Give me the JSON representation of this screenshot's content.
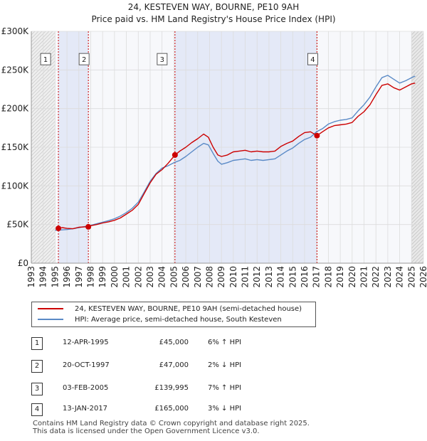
{
  "chart_data": {
    "type": "line",
    "title": "24, KESTEVEN WAY, BOURNE, PE10 9AH",
    "subtitle": "Price paid vs. HM Land Registry's House Price Index (HPI)",
    "xlabel": "",
    "ylabel": "",
    "xlim": [
      1993,
      2026
    ],
    "ylim": [
      0,
      300000
    ],
    "grid": true,
    "x_ticks": [
      "1993",
      "1994",
      "1995",
      "1996",
      "1997",
      "1998",
      "1999",
      "2000",
      "2001",
      "2002",
      "2003",
      "2004",
      "2005",
      "2006",
      "2007",
      "2008",
      "2009",
      "2010",
      "2011",
      "2012",
      "2013",
      "2014",
      "2015",
      "2016",
      "2017",
      "2018",
      "2019",
      "2020",
      "2021",
      "2022",
      "2023",
      "2024",
      "2025",
      "2026"
    ],
    "y_ticks": [
      {
        "value": 0,
        "label": "£0"
      },
      {
        "value": 50000,
        "label": "£50K"
      },
      {
        "value": 100000,
        "label": "£100K"
      },
      {
        "value": 150000,
        "label": "£150K"
      },
      {
        "value": 200000,
        "label": "£200K"
      },
      {
        "value": 250000,
        "label": "£250K"
      },
      {
        "value": 300000,
        "label": "£300K"
      }
    ],
    "series": [
      {
        "name": "24, KESTEVEN WAY, BOURNE, PE10 9AH (semi-detached house)",
        "color": "#cc0000",
        "x": [
          1995.28,
          1995.6,
          1996,
          1996.5,
          1997,
          1997.5,
          1997.8,
          1998,
          1998.5,
          1999,
          1999.5,
          2000,
          2000.5,
          2001,
          2001.5,
          2002,
          2002.5,
          2003,
          2003.5,
          2004,
          2004.5,
          2005.09,
          2005.5,
          2006,
          2006.5,
          2007,
          2007.5,
          2007.9,
          2008.3,
          2008.7,
          2009,
          2009.5,
          2010,
          2010.5,
          2011,
          2011.5,
          2012,
          2012.5,
          2013,
          2013.5,
          2014,
          2014.5,
          2015,
          2015.5,
          2016,
          2016.5,
          2017.04,
          2017.5,
          2018,
          2018.5,
          2019,
          2019.5,
          2020,
          2020.5,
          2021,
          2021.5,
          2022,
          2022.5,
          2023,
          2023.5,
          2024,
          2024.5,
          2025,
          2025.3
        ],
        "values": [
          45000,
          46000,
          45000,
          44500,
          46500,
          47000,
          47000,
          48500,
          50000,
          52000,
          53500,
          55500,
          58500,
          63500,
          68500,
          76000,
          90000,
          104000,
          115000,
          121000,
          129000,
          139995,
          145000,
          150000,
          156000,
          161000,
          167000,
          163000,
          150000,
          140000,
          138000,
          140000,
          144000,
          145000,
          146000,
          144000,
          145000,
          144000,
          144000,
          145000,
          151000,
          155000,
          158000,
          164000,
          169000,
          170000,
          165000,
          170000,
          175000,
          178000,
          179000,
          180000,
          182000,
          190000,
          196000,
          205000,
          218000,
          230000,
          232000,
          227000,
          224000,
          228000,
          232000,
          233000
        ]
      },
      {
        "name": "HPI: Average price, semi-detached house, South Kesteven",
        "color": "#5a8ac6",
        "x": [
          1995,
          1995.5,
          1996,
          1996.5,
          1997,
          1997.5,
          1998,
          1998.5,
          1999,
          1999.5,
          2000,
          2000.5,
          2001,
          2001.5,
          2002,
          2002.5,
          2003,
          2003.5,
          2004,
          2004.5,
          2005,
          2005.5,
          2006,
          2006.5,
          2007,
          2007.5,
          2007.9,
          2008.3,
          2008.7,
          2009,
          2009.5,
          2010,
          2010.5,
          2011,
          2011.5,
          2012,
          2012.5,
          2013,
          2013.5,
          2014,
          2014.5,
          2015,
          2015.5,
          2016,
          2016.5,
          2017,
          2017.5,
          2018,
          2018.5,
          2019,
          2019.5,
          2020,
          2020.5,
          2021,
          2021.5,
          2022,
          2022.5,
          2023,
          2023.5,
          2024,
          2024.5,
          2025,
          2025.3
        ],
        "values": [
          42500,
          43000,
          43500,
          44500,
          46000,
          47500,
          49000,
          51000,
          53000,
          55000,
          57500,
          61000,
          65500,
          71000,
          79000,
          92000,
          106000,
          116000,
          123000,
          126000,
          130000,
          133000,
          138000,
          144000,
          150000,
          155000,
          153000,
          142000,
          132000,
          128000,
          130000,
          133000,
          134000,
          135000,
          133000,
          134000,
          133000,
          134000,
          135000,
          140000,
          145000,
          149000,
          155000,
          160000,
          163000,
          170000,
          174000,
          180000,
          183000,
          185000,
          186000,
          188000,
          197000,
          205000,
          215000,
          228000,
          240000,
          243000,
          238000,
          233000,
          236000,
          240000,
          242000
        ]
      }
    ],
    "annotations": [
      {
        "label": "1",
        "x": 1995.28,
        "price": 45000
      },
      {
        "label": "2",
        "x": 1997.8,
        "price": 47000
      },
      {
        "label": "3",
        "x": 2005.09,
        "price": 139995
      },
      {
        "label": "4",
        "x": 2017.04,
        "price": 165000
      }
    ],
    "legend": [
      {
        "label": "24, KESTEVEN WAY, BOURNE, PE10 9AH (semi-detached house)",
        "color": "#cc0000"
      },
      {
        "label": "HPI: Average price, semi-detached house, South Kesteven",
        "color": "#5a8ac6"
      }
    ]
  },
  "sales": [
    {
      "num": "1",
      "date": "12-APR-1995",
      "price": "£45,000",
      "hpi": "6% ↑ HPI"
    },
    {
      "num": "2",
      "date": "20-OCT-1997",
      "price": "£47,000",
      "hpi": "2% ↓ HPI"
    },
    {
      "num": "3",
      "date": "03-FEB-2005",
      "price": "£139,995",
      "hpi": "7% ↑ HPI"
    },
    {
      "num": "4",
      "date": "13-JAN-2017",
      "price": "£165,000",
      "hpi": "3% ↓ HPI"
    }
  ],
  "footer": {
    "line1": "Contains HM Land Registry data © Crown copyright and database right 2025.",
    "line2": "This data is licensed under the Open Government Licence v3.0."
  }
}
